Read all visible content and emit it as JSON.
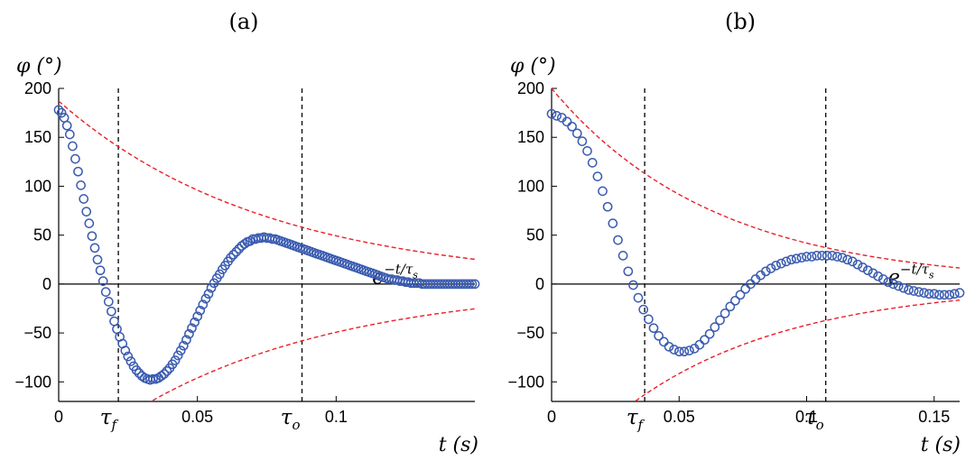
{
  "colors": {
    "marker": "#3a5bb0",
    "envelope": "#e8212a",
    "axis": "#000000",
    "zero_line": "#000000",
    "guide_line": "#000000"
  },
  "chart_data": [
    {
      "type": "scatter",
      "panel_label": "(a)",
      "ylabel": "φ (°)",
      "xlabel": "t (s)",
      "xlim": [
        0,
        0.15
      ],
      "ylim": [
        -120,
        200
      ],
      "xticks": [
        0,
        0.05,
        0.1
      ],
      "xtick_labels": [
        "0",
        "0.05",
        "0.1"
      ],
      "yticks": [
        -100,
        -50,
        0,
        50,
        100,
        150,
        200
      ],
      "ytick_labels": [
        "−100",
        "−50",
        "0",
        "50",
        "100",
        "150",
        "200"
      ],
      "vlines": [
        {
          "x": 0.0215,
          "label": "τf",
          "label_main": "τ",
          "label_sub": "f"
        },
        {
          "x": 0.0877,
          "label": "τo",
          "label_main": "τ",
          "label_sub": "o"
        }
      ],
      "envelope": {
        "label": "e^(−t/τs)",
        "amplitude": 187,
        "tau": 0.075,
        "label_at": [
          0.113,
          0.117
        ]
      },
      "series": [
        {
          "name": "φ(t)",
          "marker": "circle",
          "x": [
            0.0,
            0.001,
            0.002,
            0.003,
            0.004,
            0.005,
            0.006,
            0.007,
            0.008,
            0.009,
            0.01,
            0.011,
            0.012,
            0.013,
            0.014,
            0.015,
            0.016,
            0.017,
            0.018,
            0.019,
            0.02,
            0.021,
            0.022,
            0.023,
            0.024,
            0.025,
            0.026,
            0.027,
            0.028,
            0.029,
            0.03,
            0.031,
            0.032,
            0.033,
            0.034,
            0.035,
            0.036,
            0.037,
            0.038,
            0.039,
            0.04,
            0.041,
            0.042,
            0.043,
            0.044,
            0.045,
            0.046,
            0.047,
            0.048,
            0.049,
            0.05,
            0.051,
            0.052,
            0.053,
            0.054,
            0.055,
            0.056,
            0.057,
            0.058,
            0.059,
            0.06,
            0.061,
            0.062,
            0.063,
            0.064,
            0.065,
            0.066,
            0.067,
            0.068,
            0.069,
            0.07,
            0.071,
            0.072,
            0.073,
            0.074,
            0.075,
            0.076,
            0.077,
            0.078,
            0.079,
            0.08,
            0.081,
            0.082,
            0.083,
            0.084,
            0.085,
            0.086,
            0.087,
            0.088,
            0.089,
            0.09,
            0.091,
            0.092,
            0.093,
            0.094,
            0.095,
            0.096,
            0.097,
            0.098,
            0.099,
            0.1,
            0.101,
            0.102,
            0.103,
            0.104,
            0.105,
            0.106,
            0.107,
            0.108,
            0.109,
            0.11,
            0.111,
            0.112,
            0.113,
            0.114,
            0.115,
            0.116,
            0.117,
            0.118,
            0.119,
            0.12,
            0.121,
            0.122,
            0.123,
            0.124,
            0.125,
            0.126,
            0.127,
            0.128,
            0.129,
            0.13,
            0.131,
            0.132,
            0.133,
            0.134,
            0.135,
            0.136,
            0.137,
            0.138,
            0.139,
            0.14,
            0.141,
            0.142,
            0.143,
            0.144,
            0.145,
            0.146,
            0.147,
            0.148,
            0.149,
            0.15
          ],
          "y": [
            178,
            175,
            170,
            162,
            153,
            141,
            128,
            115,
            101,
            87,
            74,
            62,
            49,
            37,
            25,
            14,
            3,
            -8,
            -18,
            -28,
            -38,
            -46,
            -54,
            -61,
            -68,
            -74,
            -79,
            -84,
            -88,
            -91,
            -94,
            -96,
            -97,
            -98,
            -97,
            -97,
            -96,
            -94,
            -92,
            -89,
            -86,
            -82,
            -78,
            -73,
            -68,
            -63,
            -57,
            -51,
            -45,
            -39,
            -33,
            -27,
            -21,
            -15,
            -10,
            -4,
            1,
            6,
            10,
            15,
            19,
            23,
            27,
            30,
            33,
            36,
            39,
            41,
            43,
            44,
            46,
            46,
            47,
            47,
            48,
            47,
            47,
            46,
            46,
            45,
            44,
            43,
            42,
            41,
            40,
            39,
            38,
            37,
            36,
            35,
            34,
            33,
            32,
            31,
            30,
            29,
            28,
            27,
            26,
            25,
            24,
            23,
            22,
            21,
            20,
            19,
            18,
            17,
            16,
            15,
            14,
            13,
            12,
            11,
            10,
            9,
            8,
            7,
            6,
            5,
            5,
            4,
            4,
            3,
            3,
            2,
            2,
            1,
            1,
            1,
            1,
            0,
            0,
            0,
            0,
            0,
            0,
            0,
            0,
            0,
            0,
            0,
            0,
            0,
            0,
            0,
            0,
            0,
            0,
            0,
            0
          ]
        }
      ]
    },
    {
      "type": "scatter",
      "panel_label": "(b)",
      "ylabel": "φ (°)",
      "xlabel": "t (s)",
      "xlim": [
        0,
        0.16
      ],
      "ylim": [
        -120,
        200
      ],
      "xticks": [
        0,
        0.05,
        0.1,
        0.15
      ],
      "xtick_labels": [
        "0",
        "0.05",
        "0.1",
        "0.15"
      ],
      "yticks": [
        -100,
        -50,
        0,
        50,
        100,
        150,
        200
      ],
      "ytick_labels": [
        "−100",
        "−50",
        "0",
        "50",
        "100",
        "150",
        "200"
      ],
      "vlines": [
        {
          "x": 0.0365,
          "label": "τf",
          "label_main": "τ",
          "label_sub": "f"
        },
        {
          "x": 0.1075,
          "label": "τo",
          "label_main": "τ",
          "label_sub": "o"
        }
      ],
      "envelope": {
        "label": "e^(−t/τs)",
        "amplitude": 200,
        "tau": 0.064,
        "label_at": [
          0.132,
          0.146
        ]
      },
      "series": [
        {
          "name": "φ(t)",
          "marker": "circle",
          "x": [
            0.0,
            0.002,
            0.004,
            0.006,
            0.008,
            0.01,
            0.012,
            0.014,
            0.016,
            0.018,
            0.02,
            0.022,
            0.024,
            0.026,
            0.028,
            0.03,
            0.032,
            0.034,
            0.036,
            0.038,
            0.04,
            0.042,
            0.044,
            0.046,
            0.048,
            0.05,
            0.052,
            0.054,
            0.056,
            0.058,
            0.06,
            0.062,
            0.064,
            0.066,
            0.068,
            0.07,
            0.072,
            0.074,
            0.076,
            0.078,
            0.08,
            0.082,
            0.084,
            0.086,
            0.088,
            0.09,
            0.092,
            0.094,
            0.096,
            0.098,
            0.1,
            0.102,
            0.104,
            0.106,
            0.108,
            0.11,
            0.112,
            0.114,
            0.116,
            0.118,
            0.12,
            0.122,
            0.124,
            0.126,
            0.128,
            0.13,
            0.132,
            0.134,
            0.136,
            0.138,
            0.14,
            0.142,
            0.144,
            0.146,
            0.148,
            0.15,
            0.152,
            0.154,
            0.156,
            0.158,
            0.16
          ],
          "y": [
            174,
            172,
            170,
            166,
            161,
            154,
            146,
            136,
            124,
            110,
            95,
            79,
            62,
            45,
            29,
            13,
            -1,
            -14,
            -26,
            -36,
            -45,
            -53,
            -59,
            -64,
            -67,
            -69,
            -69,
            -68,
            -66,
            -62,
            -57,
            -51,
            -44,
            -37,
            -30,
            -23,
            -17,
            -11,
            -5,
            0,
            5,
            9,
            13,
            16,
            19,
            21,
            23,
            25,
            26,
            27,
            28,
            28,
            29,
            29,
            29,
            29,
            28,
            27,
            25,
            23,
            20,
            17,
            14,
            11,
            8,
            5,
            2,
            0,
            -2,
            -4,
            -6,
            -7,
            -8,
            -9,
            -10,
            -10,
            -11,
            -11,
            -11,
            -10,
            -9
          ]
        }
      ]
    }
  ]
}
